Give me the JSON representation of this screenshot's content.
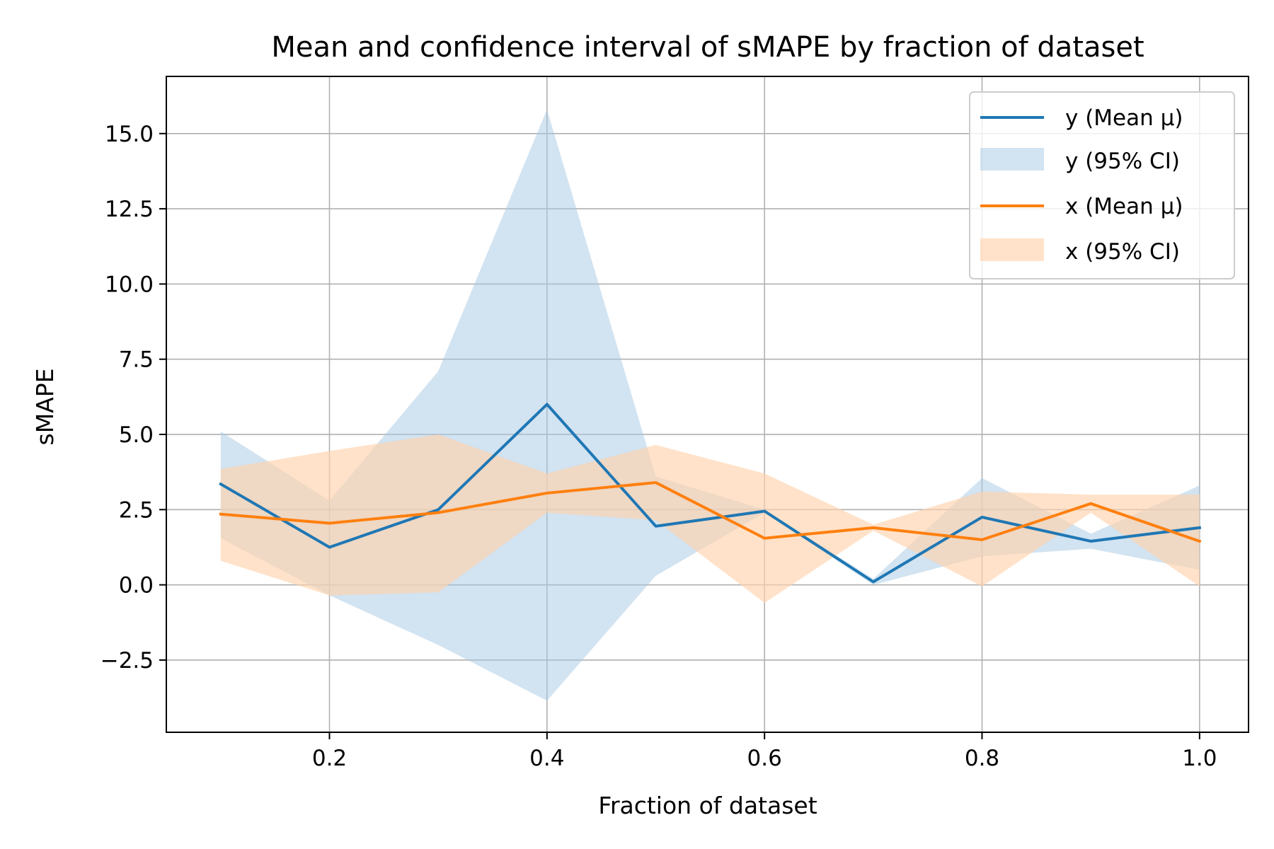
{
  "chart_data": {
    "type": "line",
    "title": "Mean and confidence interval of sMAPE by fraction of dataset",
    "xlabel": "Fraction of dataset",
    "ylabel": "sMAPE",
    "xlim": [
      0.05,
      1.045
    ],
    "ylim": [
      -4.9,
      16.9
    ],
    "xticks": [
      "0.2",
      "0.4",
      "0.6",
      "0.8",
      "1.0"
    ],
    "yticks": [
      "−2.5",
      "0.0",
      "2.5",
      "5.0",
      "7.5",
      "10.0",
      "12.5",
      "15.0"
    ],
    "grid": true,
    "legend_position": "top-right",
    "x": [
      0.1,
      0.2,
      0.3,
      0.4,
      0.5,
      0.6,
      0.7,
      0.8,
      0.9,
      1.0
    ],
    "series": [
      {
        "name": "y",
        "mean_label": "y (Mean μ)",
        "ci_label": "y (95% CI)",
        "color": "#1f77b4",
        "band_color": "#a6c8e3",
        "mean": [
          3.35,
          1.25,
          2.5,
          6.0,
          1.95,
          2.45,
          0.1,
          2.25,
          1.45,
          1.9
        ],
        "ci_lower": [
          1.55,
          -0.35,
          -2.0,
          -3.85,
          0.3,
          2.4,
          0.0,
          0.95,
          1.2,
          0.5
        ],
        "ci_upper": [
          5.1,
          2.8,
          7.1,
          15.8,
          3.6,
          2.5,
          0.2,
          3.55,
          1.7,
          3.3
        ]
      },
      {
        "name": "x",
        "mean_label": "x (Mean μ)",
        "ci_label": "x (95% CI)",
        "color": "#ff7f0e",
        "band_color": "#ffd2ac",
        "mean": [
          2.35,
          2.05,
          2.4,
          3.05,
          3.4,
          1.55,
          1.9,
          1.5,
          2.7,
          1.45
        ],
        "ci_lower": [
          0.8,
          -0.35,
          -0.25,
          2.4,
          2.15,
          -0.6,
          1.8,
          -0.05,
          2.4,
          -0.05
        ],
        "ci_upper": [
          3.85,
          4.45,
          5.0,
          3.7,
          4.65,
          3.7,
          2.0,
          3.1,
          3.0,
          3.0
        ]
      }
    ]
  }
}
